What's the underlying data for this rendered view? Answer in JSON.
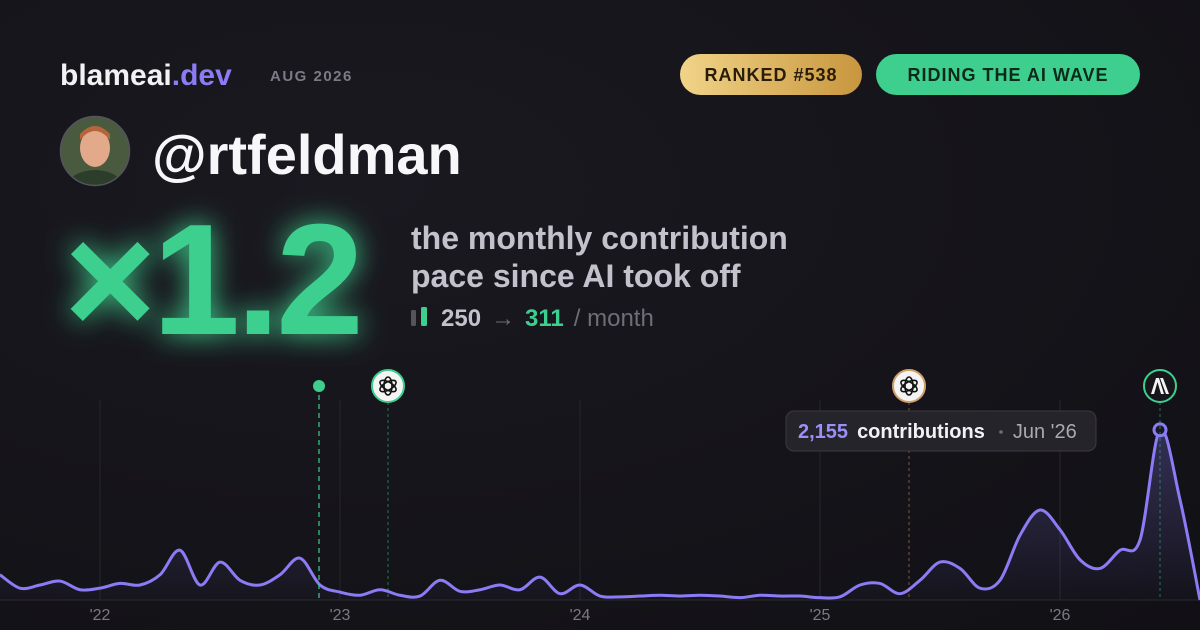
{
  "brand": {
    "name": "blameai",
    "tld": ".dev",
    "date": "AUG 2026"
  },
  "badges": [
    "RANKED #538",
    "RIDING THE AI WAVE"
  ],
  "profile": {
    "handle": "@rtfeldman"
  },
  "hero": {
    "multiplier": "×1.2",
    "description": [
      "the monthly contribution",
      "pace since AI took off"
    ],
    "before": 250,
    "arrow": "→",
    "after": 311,
    "unit": "/ month"
  },
  "chart_data": {
    "type": "line",
    "categories": [
      null,
      null,
      null,
      null,
      null,
      "'22",
      null,
      null,
      null,
      null,
      null,
      null,
      null,
      null,
      null,
      null,
      null,
      "'23",
      null,
      null,
      null,
      null,
      null,
      null,
      null,
      null,
      null,
      null,
      null,
      "'24",
      null,
      null,
      null,
      null,
      null,
      null,
      null,
      null,
      null,
      null,
      null,
      "'25",
      null,
      null,
      null,
      null,
      null,
      null,
      null,
      null,
      null,
      null,
      null,
      "'26",
      null,
      null,
      null,
      null,
      null,
      null,
      null
    ],
    "series": [
      {
        "color": "#8b7cf6",
        "values": [
          320,
          150,
          190,
          240,
          130,
          150,
          210,
          190,
          320,
          630,
          190,
          480,
          250,
          190,
          320,
          530,
          190,
          100,
          60,
          130,
          60,
          50,
          250,
          110,
          130,
          190,
          130,
          290,
          80,
          190,
          50,
          40,
          50,
          60,
          50,
          60,
          50,
          30,
          60,
          50,
          50,
          30,
          40,
          190,
          210,
          80,
          250,
          480,
          400,
          150,
          250,
          820,
          1140,
          890,
          510,
          400,
          630,
          760,
          2155,
          1270,
          0
        ]
      }
    ],
    "ylim": [
      0,
      2660
    ],
    "tooltip": {
      "value": 2155,
      "label": "2,155",
      "unit": "contributions",
      "date": "Jun '26"
    }
  }
}
